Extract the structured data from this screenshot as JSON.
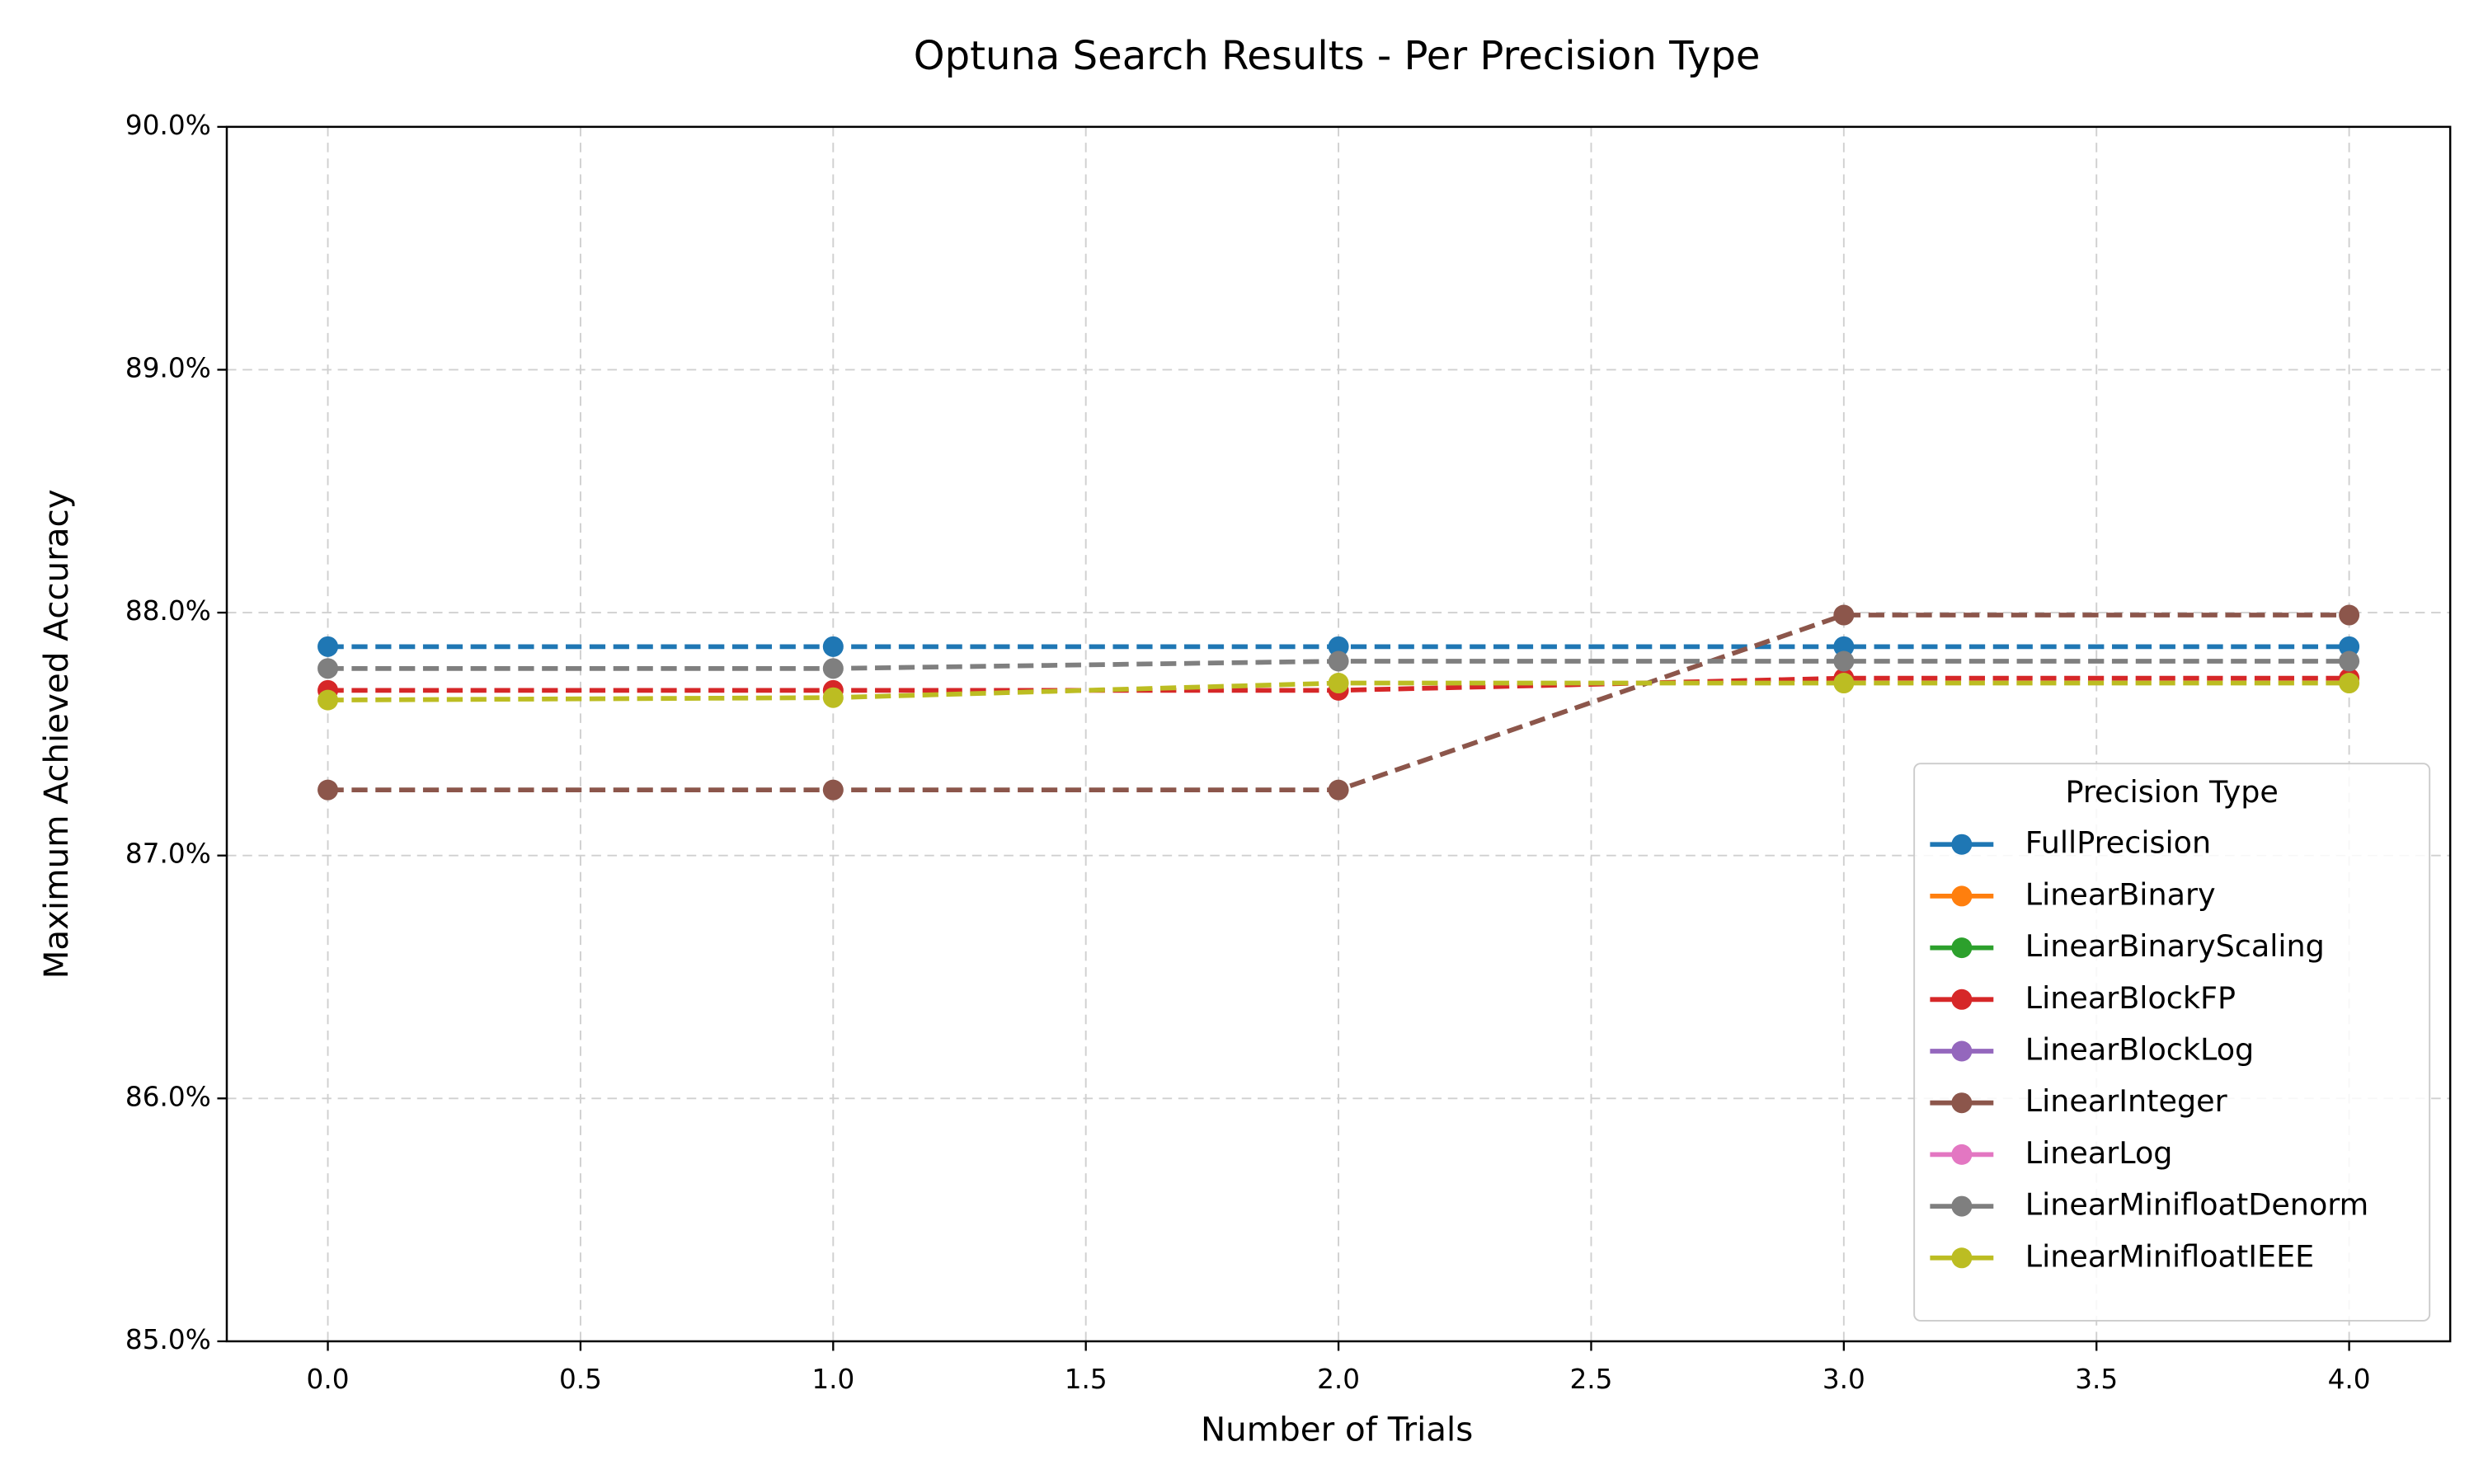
{
  "chart_data": {
    "type": "line",
    "title": "Optuna Search Results - Per Precision Type",
    "x_label": "Number of Trials",
    "y_label": "Maximum Achieved Accuracy",
    "legend_title": "Precision Type",
    "legend_position": "lower right",
    "grid": true,
    "x": [
      0,
      1,
      2,
      3,
      4
    ],
    "xlim": [
      -0.2,
      4.2
    ],
    "xticks": [
      {
        "value": 0,
        "label": "0.0"
      },
      {
        "value": 0.5,
        "label": "0.5"
      },
      {
        "value": 1,
        "label": "1.0"
      },
      {
        "value": 1.5,
        "label": "1.5"
      },
      {
        "value": 2,
        "label": "2.0"
      },
      {
        "value": 2.5,
        "label": "2.5"
      },
      {
        "value": 3,
        "label": "3.0"
      },
      {
        "value": 3.5,
        "label": "3.5"
      },
      {
        "value": 4,
        "label": "4.0"
      }
    ],
    "ylim": [
      85,
      90
    ],
    "yticks": [
      {
        "value": 85,
        "label": "85.0%"
      },
      {
        "value": 86,
        "label": "86.0%"
      },
      {
        "value": 87,
        "label": "87.0%"
      },
      {
        "value": 88,
        "label": "88.0%"
      },
      {
        "value": 89,
        "label": "89.0%"
      },
      {
        "value": 90,
        "label": "90.0%"
      }
    ],
    "series": [
      {
        "name": "FullPrecision",
        "color": "#1f77b4",
        "values": [
          87.86,
          87.86,
          87.86,
          87.86,
          87.86
        ]
      },
      {
        "name": "LinearBinary",
        "color": "#ff7f0e",
        "values": [
          null,
          null,
          null,
          null,
          null
        ]
      },
      {
        "name": "LinearBinaryScaling",
        "color": "#2ca02c",
        "values": [
          null,
          null,
          null,
          null,
          null
        ]
      },
      {
        "name": "LinearBlockFP",
        "color": "#d62728",
        "values": [
          87.68,
          87.68,
          87.68,
          87.73,
          87.73
        ]
      },
      {
        "name": "LinearBlockLog",
        "color": "#9467bd",
        "values": [
          null,
          null,
          null,
          null,
          null
        ]
      },
      {
        "name": "LinearInteger",
        "color": "#8c564b",
        "values": [
          87.27,
          87.27,
          87.27,
          87.99,
          87.99
        ]
      },
      {
        "name": "LinearLog",
        "color": "#e377c2",
        "values": [
          null,
          null,
          null,
          null,
          null
        ]
      },
      {
        "name": "LinearMinifloatDenorm",
        "color": "#7f7f7f",
        "values": [
          87.77,
          87.77,
          87.8,
          87.8,
          87.8
        ]
      },
      {
        "name": "LinearMinifloatIEEE",
        "color": "#bcbd22",
        "values": [
          87.64,
          87.65,
          87.71,
          87.71,
          87.71
        ]
      }
    ]
  }
}
